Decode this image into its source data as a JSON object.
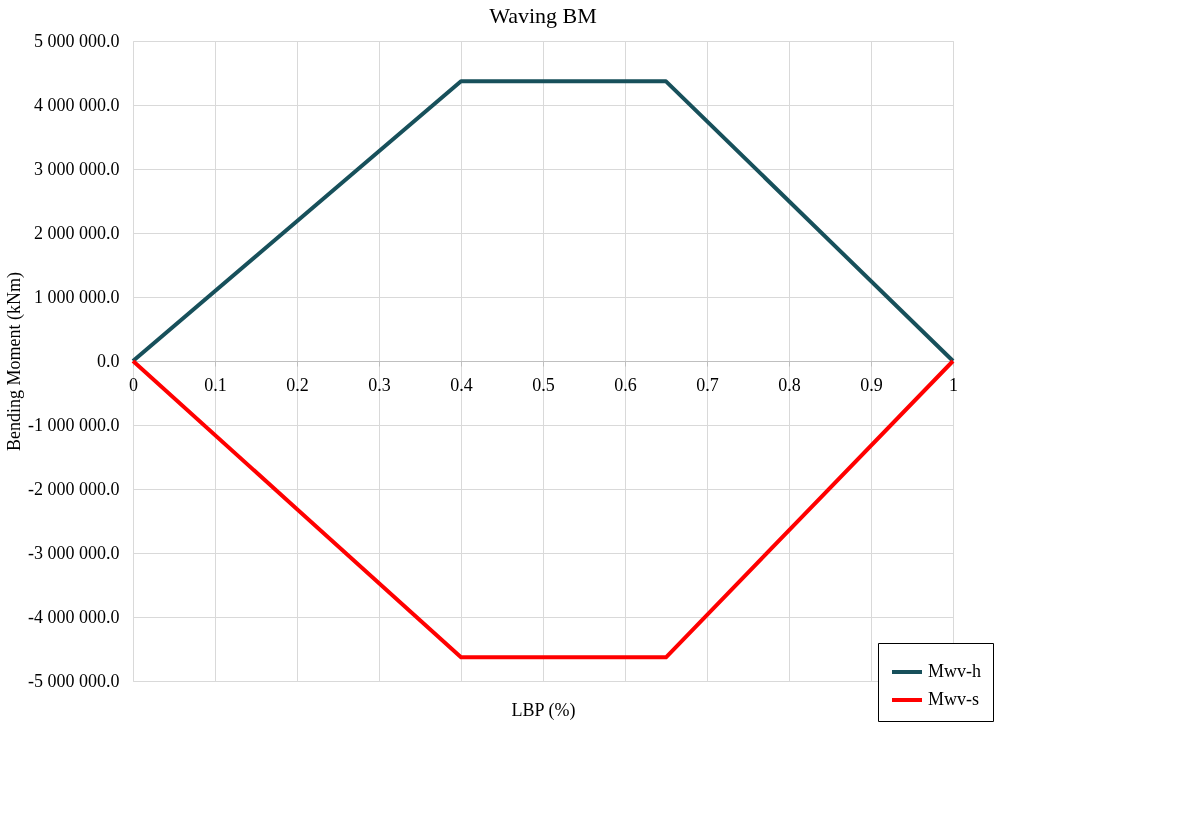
{
  "chart_data": {
    "type": "line",
    "title": "Waving BM",
    "xlabel": "LBP (%)",
    "ylabel": "Bending Moment (kNm)",
    "x": [
      0,
      0.4,
      0.65,
      1
    ],
    "series": [
      {
        "name": "Mwv-h",
        "color": "#17505b",
        "values": [
          0,
          4370000,
          4370000,
          0
        ]
      },
      {
        "name": "Mwv-s",
        "color": "#ff0000",
        "values": [
          0,
          -4630000,
          -4630000,
          0
        ]
      }
    ],
    "xlim": [
      0,
      1
    ],
    "xticks": [
      0,
      0.1,
      0.2,
      0.3,
      0.4,
      0.5,
      0.6,
      0.7,
      0.8,
      0.9,
      1
    ],
    "ylim": [
      -5000000,
      5000000
    ],
    "yticks": [
      {
        "value": -5000000,
        "label": "-5 000 000.0"
      },
      {
        "value": -4000000,
        "label": "-4 000 000.0"
      },
      {
        "value": -3000000,
        "label": "-3 000 000.0"
      },
      {
        "value": -2000000,
        "label": "-2 000 000.0"
      },
      {
        "value": -1000000,
        "label": "-1 000 000.0"
      },
      {
        "value": 0,
        "label": "0.0"
      },
      {
        "value": 1000000,
        "label": "1 000 000.0"
      },
      {
        "value": 2000000,
        "label": "2 000 000.0"
      },
      {
        "value": 3000000,
        "label": "3 000 000.0"
      },
      {
        "value": 4000000,
        "label": "4 000 000.0"
      },
      {
        "value": 5000000,
        "label": "5 000 000.0"
      }
    ],
    "grid": true,
    "legend": "bottom right",
    "marker": "none",
    "line_style": "solid"
  }
}
